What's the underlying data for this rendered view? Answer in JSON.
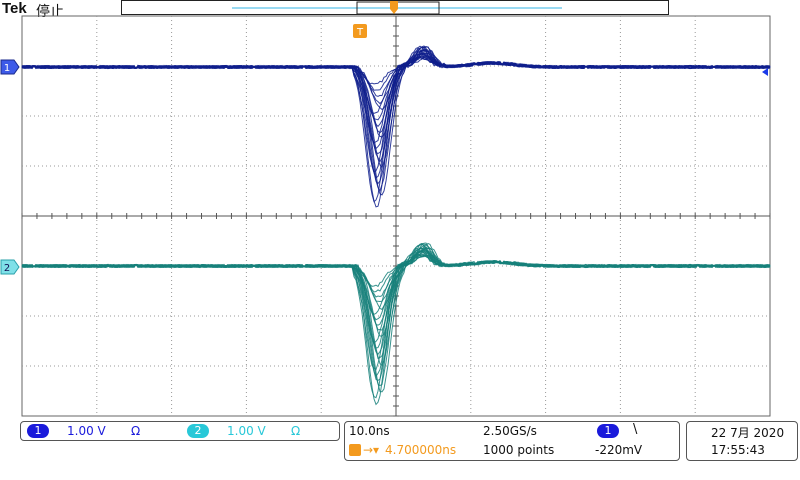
{
  "header": {
    "brand": "Tek",
    "status": "停止"
  },
  "markers": {
    "trigger_position_label": "T",
    "ch1_label": "1",
    "ch2_label": "2"
  },
  "channels": [
    {
      "label": "1",
      "scale": "1.00 V",
      "coupling": "Ω",
      "color": "#1a1adb"
    },
    {
      "label": "2",
      "scale": "1.00 V",
      "coupling": "Ω",
      "color": "#28c8d8"
    }
  ],
  "horizontal": {
    "time_per_div": "10.0ns",
    "sample_rate": "2.50GS/s",
    "trigger_delay": "4.700000ns",
    "record_length": "1000 points"
  },
  "trigger": {
    "source": "1",
    "slope_symbol": "\\",
    "level": "-220mV"
  },
  "datetime": {
    "date": "22 7月 2020",
    "time": "17:55:43"
  },
  "colors": {
    "ch1_trace": "#0f1f8c",
    "ch2_trace": "#16807a",
    "trigger_orange": "#f39a1e",
    "grid": "#888888"
  }
}
